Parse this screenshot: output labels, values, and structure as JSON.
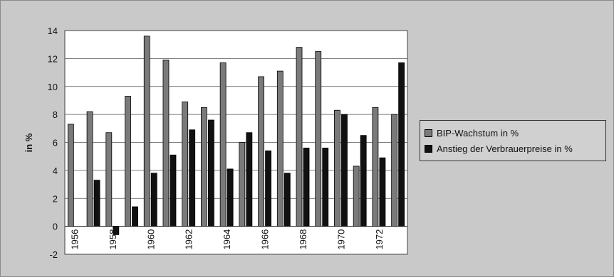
{
  "chart_data": {
    "type": "bar",
    "ylabel": "in %",
    "xlabel": "",
    "title": "",
    "ylim": [
      -2,
      14
    ],
    "y_ticks": [
      "-2",
      "0",
      "2",
      "4",
      "6",
      "8",
      "10",
      "12",
      "14"
    ],
    "grid": "horizontal",
    "legend_position": "right",
    "x": [
      1956,
      1957,
      1958,
      1959,
      1960,
      1961,
      1962,
      1963,
      1964,
      1965,
      1966,
      1967,
      1968,
      1969,
      1970,
      1971,
      1972,
      1973
    ],
    "x_tick_labels": [
      "1956",
      "",
      "1958",
      "",
      "1960",
      "",
      "1962",
      "",
      "1964",
      "",
      "1966",
      "",
      "1968",
      "",
      "1970",
      "",
      "1972",
      ""
    ],
    "series": [
      {
        "name": "BIP-Wachstum in %",
        "color": "#7a7a7a",
        "values": [
          7.3,
          8.2,
          6.7,
          9.3,
          13.6,
          11.9,
          8.9,
          8.5,
          11.7,
          6.0,
          10.7,
          11.1,
          12.8,
          12.5,
          8.3,
          4.3,
          8.5,
          8.0
        ]
      },
      {
        "name": "Anstieg der Verbrauerpreise in %",
        "color": "#111111",
        "values": [
          0.0,
          3.3,
          -0.6,
          1.4,
          3.8,
          5.1,
          6.9,
          7.6,
          4.1,
          6.7,
          5.4,
          3.8,
          5.6,
          5.6,
          8.0,
          6.5,
          4.9,
          11.7
        ]
      }
    ]
  }
}
